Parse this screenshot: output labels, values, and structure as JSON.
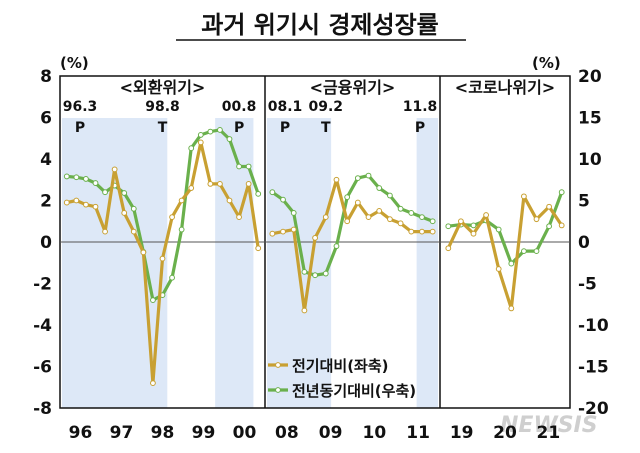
{
  "chart_data": {
    "type": "line",
    "title": "과거 위기시 경제성장률",
    "left_unit": "(%)",
    "right_unit": "(%)",
    "ylim_left": [
      -8,
      8
    ],
    "ylim_right": [
      -20,
      20
    ],
    "yticks_left": [
      "8",
      "6",
      "4",
      "2",
      "0",
      "-2",
      "-4",
      "-6",
      "-8"
    ],
    "yticks_right": [
      "20",
      "15",
      "10",
      "5",
      "0",
      "-5",
      "-10",
      "-15",
      "-20"
    ],
    "colors": {
      "qoq": "#c8a032",
      "yoy": "#6ab04c",
      "shade": "#dde8f7"
    },
    "legend": {
      "placement": "bottom-right",
      "qoq_label": "전기대비(좌축)",
      "yoy_label": "전년동기대비(우축)"
    },
    "panels": [
      {
        "label": "<외환위기>",
        "x_ticks": [
          "96",
          "97",
          "98",
          "99",
          "00"
        ],
        "annotations": [
          {
            "text": "96.3",
            "letter": "P",
            "at": 0
          },
          {
            "text": "98.8",
            "letter": "T",
            "at": 10
          },
          {
            "text": "00.8",
            "letter": "P",
            "at": 18
          }
        ],
        "shaded": [
          [
            0,
            10
          ],
          [
            16,
            19
          ]
        ],
        "qoq": [
          1.9,
          2.0,
          1.8,
          1.7,
          0.5,
          3.5,
          1.4,
          0.5,
          -0.5,
          -6.8,
          -0.8,
          1.2,
          2.0,
          2.6,
          4.8,
          2.8,
          2.8,
          2.0,
          1.2,
          2.8,
          -0.3
        ],
        "yoy": [
          7.9,
          7.8,
          7.6,
          7.1,
          6.0,
          6.8,
          5.9,
          4.0,
          -1.2,
          -7.0,
          -6.4,
          -4.3,
          1.5,
          11.3,
          12.9,
          13.3,
          13.5,
          12.4,
          9.1,
          9.1,
          5.8
        ]
      },
      {
        "label": "<금융위기>",
        "x_ticks": [
          "08",
          "09",
          "10",
          "11"
        ],
        "annotations": [
          {
            "text": "08.1",
            "letter": "P",
            "at": 0
          },
          {
            "text": "09.2",
            "letter": "T",
            "at": 5
          },
          {
            "text": "11.8",
            "letter": "P",
            "at": 14
          }
        ],
        "shaded": [
          [
            0,
            5
          ],
          [
            14,
            15
          ]
        ],
        "qoq": [
          0.4,
          0.5,
          0.6,
          -3.3,
          0.2,
          1.2,
          3.0,
          1.0,
          1.9,
          1.2,
          1.5,
          1.1,
          0.9,
          0.5,
          0.5,
          0.5
        ],
        "yoy": [
          6.0,
          5.1,
          3.5,
          -3.6,
          -4.0,
          -3.8,
          -0.5,
          5.4,
          7.7,
          8.0,
          6.5,
          5.6,
          4.0,
          3.5,
          3.0,
          2.5
        ]
      },
      {
        "label": "<코로나위기>",
        "x_ticks": [
          "19",
          "20",
          "21"
        ],
        "annotations": [],
        "shaded": [],
        "qoq": [
          -0.3,
          1.0,
          0.4,
          1.3,
          -1.3,
          -3.2,
          2.2,
          1.1,
          1.7,
          0.8
        ],
        "yoy": [
          1.9,
          2.1,
          2.0,
          2.6,
          1.5,
          -2.6,
          -1.1,
          -1.1,
          1.9,
          6.0
        ]
      }
    ]
  },
  "watermark": "NEWSIS"
}
